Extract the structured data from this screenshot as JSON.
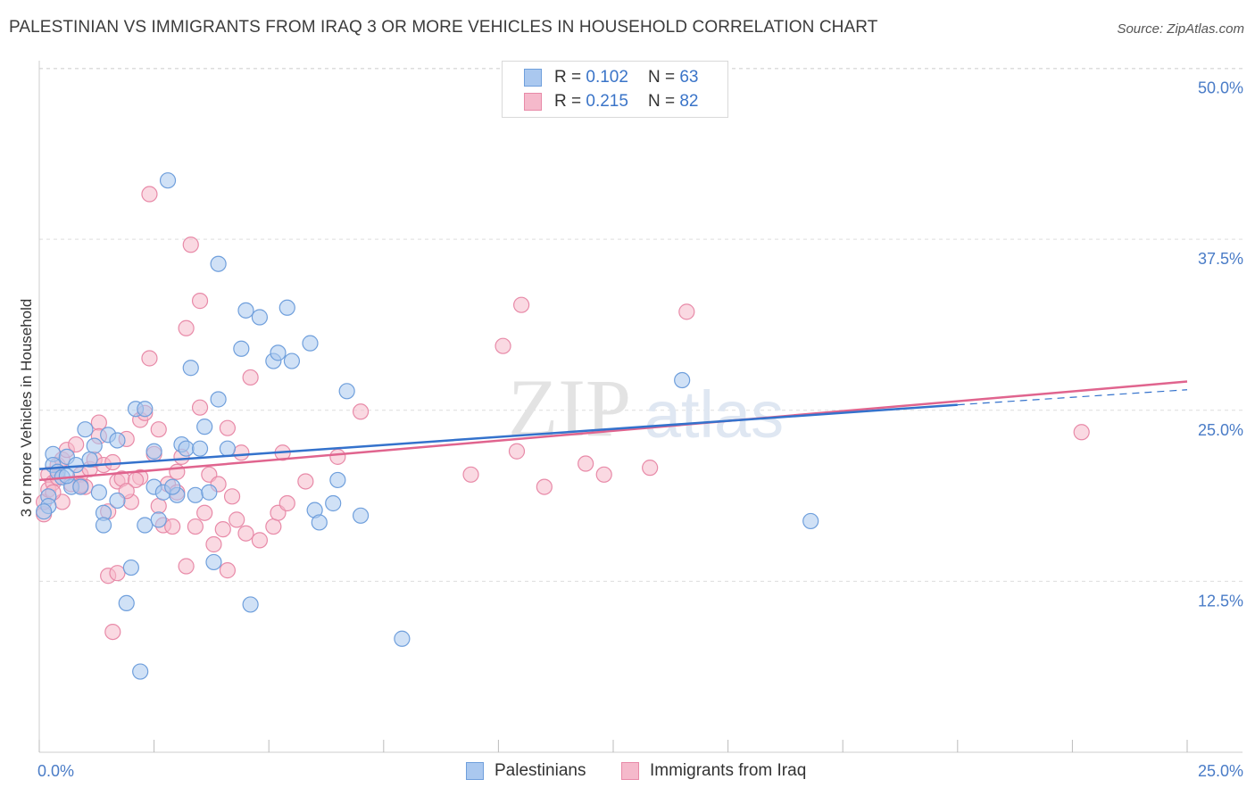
{
  "title": "PALESTINIAN VS IMMIGRANTS FROM IRAQ 3 OR MORE VEHICLES IN HOUSEHOLD CORRELATION CHART",
  "source": "Source: ZipAtlas.com",
  "watermark": {
    "zip": "ZIP",
    "atlas": "atlas"
  },
  "legend": {
    "rows": [
      {
        "r_label": "R =",
        "r_value": "0.102",
        "n_label": "N =",
        "n_value": "63"
      },
      {
        "r_label": "R =",
        "r_value": "0.215",
        "n_label": "N =",
        "n_value": "82"
      }
    ]
  },
  "bottom_legend": {
    "series1": "Palestinians",
    "series2": "Immigrants from Iraq"
  },
  "colors": {
    "blue_fill": "#aac8ef",
    "blue_stroke": "#6f9fdc",
    "blue_line": "#3472cc",
    "pink_fill": "#f5b9cb",
    "pink_stroke": "#e88aa8",
    "pink_line": "#e0648e",
    "axis_text": "#4a7cc7",
    "grid": "#dddddd"
  },
  "chart_data": {
    "type": "scatter",
    "title": "PALESTINIAN VS IMMIGRANTS FROM IRAQ 3 OR MORE VEHICLES IN HOUSEHOLD CORRELATION CHART",
    "xlabel": "",
    "ylabel": "3 or more Vehicles in Household",
    "xlim": [
      0,
      25
    ],
    "ylim": [
      0,
      52
    ],
    "x_tick_labels": [
      "0.0%",
      "25.0%"
    ],
    "y_ticks": [
      12.5,
      25.0,
      37.5,
      50.0
    ],
    "y_tick_labels": [
      "12.5%",
      "25.0%",
      "37.5%",
      "50.0%"
    ],
    "series": [
      {
        "name": "Palestinians",
        "R": 0.102,
        "N": 63,
        "trend": {
          "x0": 0,
          "y0": 20.7,
          "x1": 20,
          "y1": 25.4,
          "dash_to_x": 25,
          "dash_to_y": 26.5
        },
        "points": [
          [
            0.2,
            18.7
          ],
          [
            0.2,
            18.0
          ],
          [
            0.3,
            21.8
          ],
          [
            0.3,
            21.0
          ],
          [
            0.4,
            20.5
          ],
          [
            0.5,
            20.1
          ],
          [
            0.6,
            21.6
          ],
          [
            0.7,
            19.4
          ],
          [
            0.8,
            21.0
          ],
          [
            0.9,
            19.4
          ],
          [
            1.0,
            23.6
          ],
          [
            1.2,
            22.4
          ],
          [
            1.3,
            19.0
          ],
          [
            1.4,
            17.5
          ],
          [
            1.4,
            16.6
          ],
          [
            1.5,
            23.2
          ],
          [
            1.7,
            18.4
          ],
          [
            1.7,
            22.8
          ],
          [
            1.9,
            10.9
          ],
          [
            2.0,
            13.5
          ],
          [
            2.1,
            25.1
          ],
          [
            2.2,
            5.9
          ],
          [
            2.3,
            25.1
          ],
          [
            2.3,
            16.6
          ],
          [
            2.5,
            19.4
          ],
          [
            2.5,
            22.0
          ],
          [
            2.6,
            17.0
          ],
          [
            2.7,
            19.0
          ],
          [
            2.8,
            41.8
          ],
          [
            3.0,
            18.8
          ],
          [
            3.1,
            22.5
          ],
          [
            3.2,
            22.2
          ],
          [
            3.3,
            28.1
          ],
          [
            3.4,
            18.8
          ],
          [
            3.5,
            22.2
          ],
          [
            3.6,
            23.8
          ],
          [
            3.7,
            19.0
          ],
          [
            3.8,
            13.9
          ],
          [
            3.9,
            25.8
          ],
          [
            3.9,
            35.7
          ],
          [
            4.1,
            22.2
          ],
          [
            4.4,
            29.5
          ],
          [
            4.5,
            32.3
          ],
          [
            4.6,
            10.8
          ],
          [
            4.8,
            31.8
          ],
          [
            5.1,
            28.6
          ],
          [
            5.2,
            29.2
          ],
          [
            5.4,
            32.5
          ],
          [
            5.5,
            28.6
          ],
          [
            5.9,
            29.9
          ],
          [
            6.0,
            17.7
          ],
          [
            6.1,
            16.8
          ],
          [
            6.4,
            18.2
          ],
          [
            6.5,
            19.9
          ],
          [
            6.7,
            26.4
          ],
          [
            7.0,
            17.3
          ],
          [
            7.9,
            8.3
          ],
          [
            14.0,
            27.2
          ],
          [
            16.8,
            16.9
          ],
          [
            0.1,
            17.6
          ],
          [
            1.1,
            21.4
          ],
          [
            0.6,
            20.2
          ],
          [
            2.9,
            19.4
          ]
        ]
      },
      {
        "name": "Immigrants from Iraq",
        "R": 0.215,
        "N": 82,
        "trend": {
          "x0": 0,
          "y0": 19.9,
          "x1": 25,
          "y1": 27.1
        },
        "points": [
          [
            0.1,
            17.4
          ],
          [
            0.1,
            18.3
          ],
          [
            0.2,
            20.3
          ],
          [
            0.2,
            19.2
          ],
          [
            0.3,
            19.7
          ],
          [
            0.4,
            21.0
          ],
          [
            0.5,
            18.3
          ],
          [
            0.5,
            21.4
          ],
          [
            0.6,
            22.1
          ],
          [
            0.7,
            19.6
          ],
          [
            0.8,
            22.5
          ],
          [
            0.9,
            20.3
          ],
          [
            1.0,
            19.4
          ],
          [
            1.1,
            20.7
          ],
          [
            1.2,
            21.4
          ],
          [
            1.3,
            24.1
          ],
          [
            1.3,
            23.1
          ],
          [
            1.4,
            21.0
          ],
          [
            1.5,
            17.6
          ],
          [
            1.5,
            12.9
          ],
          [
            1.6,
            8.8
          ],
          [
            1.7,
            13.1
          ],
          [
            1.7,
            19.8
          ],
          [
            1.8,
            20.0
          ],
          [
            1.9,
            22.9
          ],
          [
            2.0,
            18.3
          ],
          [
            2.2,
            24.3
          ],
          [
            2.2,
            20.1
          ],
          [
            2.3,
            24.8
          ],
          [
            2.4,
            40.8
          ],
          [
            2.4,
            28.8
          ],
          [
            2.5,
            21.8
          ],
          [
            2.6,
            23.6
          ],
          [
            2.6,
            18.0
          ],
          [
            2.7,
            16.6
          ],
          [
            2.8,
            19.6
          ],
          [
            2.9,
            16.5
          ],
          [
            3.0,
            19.0
          ],
          [
            3.1,
            21.6
          ],
          [
            3.2,
            13.6
          ],
          [
            3.2,
            31.0
          ],
          [
            3.3,
            37.1
          ],
          [
            3.4,
            16.5
          ],
          [
            3.5,
            25.2
          ],
          [
            3.5,
            33.0
          ],
          [
            3.6,
            17.5
          ],
          [
            3.7,
            20.3
          ],
          [
            3.8,
            15.2
          ],
          [
            3.9,
            19.6
          ],
          [
            4.0,
            16.3
          ],
          [
            4.1,
            13.3
          ],
          [
            4.1,
            23.7
          ],
          [
            4.2,
            18.7
          ],
          [
            4.3,
            17.0
          ],
          [
            4.4,
            21.9
          ],
          [
            4.5,
            16.0
          ],
          [
            4.6,
            27.4
          ],
          [
            4.8,
            15.5
          ],
          [
            5.1,
            16.5
          ],
          [
            5.2,
            17.5
          ],
          [
            5.3,
            21.9
          ],
          [
            5.4,
            18.2
          ],
          [
            5.8,
            19.8
          ],
          [
            6.5,
            21.6
          ],
          [
            7.0,
            24.9
          ],
          [
            9.4,
            20.3
          ],
          [
            10.1,
            29.7
          ],
          [
            10.4,
            22.0
          ],
          [
            10.5,
            32.7
          ],
          [
            11.0,
            19.4
          ],
          [
            11.9,
            21.1
          ],
          [
            12.3,
            20.3
          ],
          [
            13.3,
            20.8
          ],
          [
            14.1,
            32.2
          ],
          [
            22.7,
            23.4
          ],
          [
            0.3,
            19.0
          ],
          [
            0.9,
            19.5
          ],
          [
            1.6,
            21.2
          ],
          [
            2.1,
            19.9
          ],
          [
            3.0,
            20.5
          ],
          [
            0.4,
            20.1
          ],
          [
            1.9,
            19.1
          ]
        ]
      }
    ]
  }
}
